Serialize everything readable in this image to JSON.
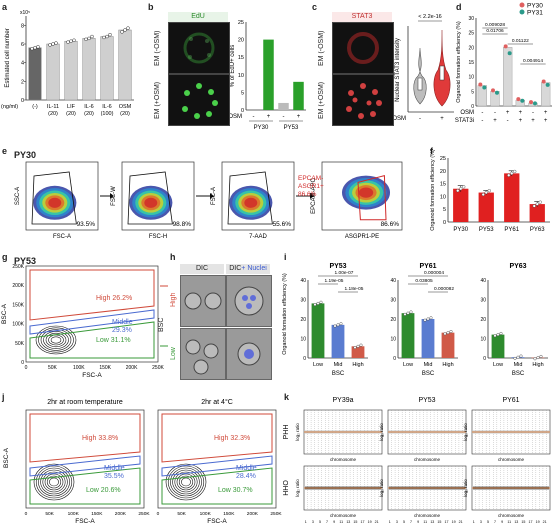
{
  "panels": {
    "a": {
      "label": "a",
      "unit_label": "(ng/ml)",
      "chart_data": {
        "type": "bar",
        "categories": [
          "(-)",
          "IL-11 (20)",
          "LIF (20)",
          "IL-6 (20)",
          "IL-6 (100)",
          "OSM (20)"
        ],
        "values": [
          5.6,
          6.0,
          6.3,
          6.6,
          6.8,
          7.5
        ],
        "points": [
          [
            5.5,
            5.6,
            5.7
          ],
          [
            5.9,
            6.0,
            6.1
          ],
          [
            6.2,
            6.3,
            6.4
          ],
          [
            6.5,
            6.6,
            6.8
          ],
          [
            6.7,
            6.8,
            7.0
          ],
          [
            7.3,
            7.5,
            7.7
          ]
        ],
        "ylabel": "Estimated cell number",
        "ylim": [
          0,
          9
        ],
        "yticks": [
          "0",
          "2",
          "4",
          "6",
          "8"
        ],
        "yexp": "x10⁵"
      }
    },
    "b": {
      "label": "b",
      "channel": "EdU",
      "row1": "EM (-OSM)",
      "row2": "EM (+OSM)",
      "chart_data": {
        "type": "bar",
        "categories": [
          "PY30 -",
          "PY30 +",
          "PY53 -",
          "PY53 +"
        ],
        "values": [
          0,
          20,
          2,
          8
        ],
        "colors": [
          "#2aa02a",
          "#2aa02a",
          "#bbbbbb",
          "#2aa02a"
        ],
        "ylabel": "% of EdU+ cells",
        "ylim": [
          0,
          25
        ],
        "yticks": [
          "0",
          "5",
          "10",
          "15",
          "20",
          "25"
        ],
        "osm_label": "OSM",
        "signs": [
          "-",
          "+",
          "-",
          "+"
        ],
        "groups": [
          "PY30",
          "PY53"
        ]
      }
    },
    "c": {
      "label": "c",
      "channel": "STAT3",
      "row1": "EM (-OSM)",
      "row2": "EM (+OSM)",
      "chart_data": {
        "type": "violin",
        "categories": [
          "-",
          "+"
        ],
        "ylabel": "Nuclear STAT3 intensity",
        "pvalue": "< 2.2e-16",
        "osm_label": "OSM"
      }
    },
    "d": {
      "label": "d",
      "legend": [
        "PY30",
        "PY31"
      ],
      "legend_colors": [
        "#e06060",
        "#2a9a8a"
      ],
      "chart_data": {
        "type": "bar",
        "categories": [
          "1",
          "2",
          "3",
          "4",
          "5",
          "6"
        ],
        "values": [
          7,
          5,
          20,
          2,
          1,
          8
        ],
        "ylabel": "Organoid formation efficiency (%)",
        "ylim": [
          0,
          30
        ],
        "yticks": [
          "0",
          "5",
          "10",
          "15",
          "20",
          "25",
          "30"
        ],
        "pvalues": [
          "0.009028",
          "0.01706",
          "0.01122",
          "0.004914"
        ],
        "osm_row": "OSM",
        "stat_row": "STAT3i",
        "osm_signs": [
          "-",
          "-",
          "+",
          "+",
          "-",
          "+"
        ],
        "stat_signs": [
          "-",
          "+",
          "-",
          "+",
          "+",
          "+"
        ]
      }
    },
    "e": {
      "label": "e",
      "sample": "PY30",
      "plots": [
        {
          "x": "FSC-A",
          "y": "SSC-A",
          "pct": "93.5%"
        },
        {
          "x": "FSC-H",
          "y": "FSC-W",
          "pct": "98.8%"
        },
        {
          "x": "7-AAD",
          "y": "FSC-A",
          "pct": "55.6%"
        },
        {
          "x": "ASGPR1-PE",
          "y": "EPCAM-APC",
          "pct": "86.6%",
          "gate": "EPCAM- ASGR1+"
        }
      ]
    },
    "f": {
      "label": "f",
      "chart_data": {
        "type": "bar",
        "categories": [
          "PY30",
          "PY53",
          "PY61",
          "PY63"
        ],
        "values": [
          13,
          11.5,
          19,
          7
        ],
        "errors": [
          1.2,
          0.8,
          1.0,
          1.0
        ],
        "ylabel": "Organoid formation efficiency (%)",
        "ylim": [
          0,
          25
        ],
        "yticks": [
          "0",
          "5",
          "10",
          "15",
          "20",
          "25"
        ]
      }
    },
    "g": {
      "label": "g",
      "sample": "PY53",
      "xlabel": "FSC-A",
      "ylabel": "BSC-A",
      "gates": [
        {
          "name": "High 26.2%",
          "color": "#d04a3a"
        },
        {
          "name": "Middle 29.3%",
          "color": "#4a6ad0"
        },
        {
          "name": "Low 31.1%",
          "color": "#3a9a3a"
        }
      ],
      "xticks": [
        "0",
        "50K",
        "100K",
        "150K",
        "200K",
        "250K"
      ],
      "yticks": [
        "0",
        "50K",
        "100K",
        "150K",
        "200K",
        "250K"
      ]
    },
    "h": {
      "label": "h",
      "col1": "DIC",
      "col2": "DIC",
      "col2b": "+ Nuclei",
      "row_title": "BSC",
      "rows": [
        "High",
        "Low"
      ]
    },
    "i": {
      "label": "i",
      "xlabel": "BSC",
      "charts": [
        {
          "title": "PY53",
          "categories": [
            "Low",
            "Mid",
            "High"
          ],
          "values": [
            28,
            17,
            6
          ],
          "ylim": [
            0,
            40
          ],
          "yticks": [
            "0",
            "10",
            "20",
            "30",
            "40"
          ],
          "pvalues": [
            "1.00e-07",
            "1.19e-05",
            "1.18e-05"
          ]
        },
        {
          "title": "PY61",
          "categories": [
            "Low",
            "Mid",
            "High"
          ],
          "values": [
            23,
            20,
            13
          ],
          "ylim": [
            0,
            40
          ],
          "yticks": [
            "0",
            "10",
            "20",
            "30",
            "40"
          ],
          "pvalues": [
            "0.000004",
            "0.03805",
            "0.000082"
          ]
        },
        {
          "title": "PY63",
          "categories": [
            "Low",
            "Mid",
            "High"
          ],
          "values": [
            12,
            0.4,
            0.2
          ],
          "ylim": [
            0,
            40
          ],
          "yticks": [
            "0",
            "10",
            "20",
            "30",
            "40"
          ]
        }
      ],
      "ylabel": "Organoid formation efficiency (%)",
      "colors": [
        "#2e8b2e",
        "#5a7cd0",
        "#d05a48"
      ]
    },
    "j": {
      "label": "j",
      "plots": [
        {
          "title": "2hr at room temperature",
          "high": "High 33.8%",
          "mid": "Middle 35.5%",
          "low": "Low 20.6%"
        },
        {
          "title": "2hr at 4°C",
          "high": "High 32.3%",
          "mid": "Middle 28.4%",
          "low": "Low 30.7%"
        }
      ],
      "xlabel": "FSC-A",
      "ylabel": "BSC-A",
      "xticks": [
        "0",
        "50K",
        "100K",
        "150K",
        "200K",
        "250K"
      ]
    },
    "k": {
      "label": "k",
      "columns": [
        "PY39a",
        "PY53",
        "PY61"
      ],
      "rows": [
        "PHH",
        "HHO"
      ],
      "xlabel": "chromosome",
      "ylabel": "log₂ ratio",
      "chroms": [
        "1",
        "2",
        "3",
        "4",
        "5",
        "6",
        "7",
        "8",
        "9",
        "10",
        "11",
        "12",
        "13",
        "14",
        "15",
        "16",
        "17",
        "18",
        "19",
        "20",
        "21",
        "22"
      ]
    }
  }
}
